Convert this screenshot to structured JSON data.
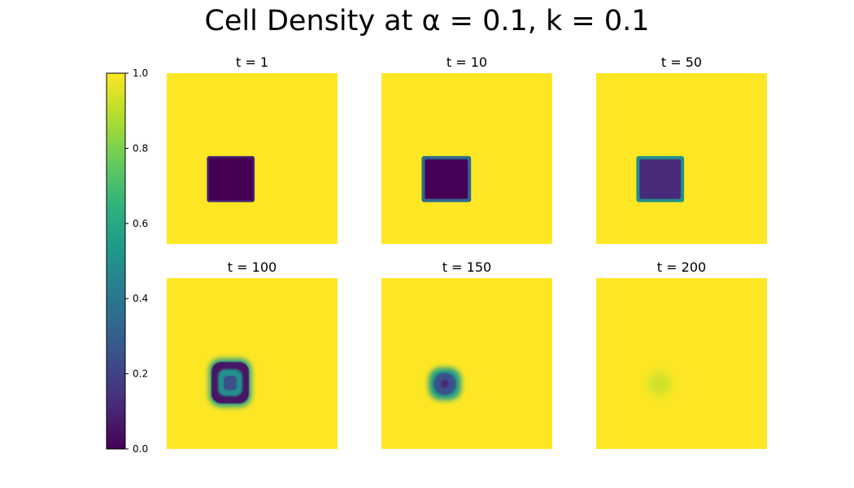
{
  "figure": {
    "title": "Cell Density at α = 0.1, k = 0.1"
  },
  "chart_data": {
    "type": "heatmap",
    "title": "Cell Density at α = 0.1, k = 0.1",
    "colormap": "viridis",
    "colors": {
      "low": "#440154",
      "mid": "#21918c",
      "high": "#fde725"
    },
    "colorbar": {
      "range": [
        0.0,
        1.0
      ],
      "ticks": [
        0.0,
        0.2,
        0.4,
        0.6,
        0.8,
        1.0
      ],
      "tick_labels": [
        "0.0",
        "0.2",
        "0.4",
        "0.6",
        "0.8",
        "1.0"
      ]
    },
    "grid": false,
    "panels": [
      {
        "title": "t = 1",
        "t": 1
      },
      {
        "title": "t = 10",
        "t": 10
      },
      {
        "title": "t = 50",
        "t": 50
      },
      {
        "title": "t = 100",
        "t": 100
      },
      {
        "title": "t = 150",
        "t": 150
      },
      {
        "title": "t = 200",
        "t": 200
      }
    ]
  }
}
